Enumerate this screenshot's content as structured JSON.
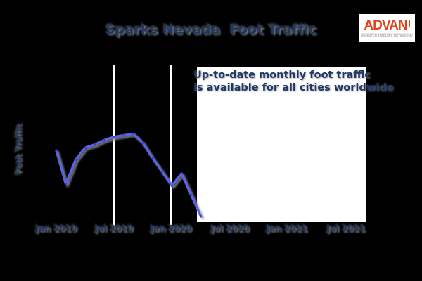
{
  "page": {
    "background": "#000000"
  },
  "header": {
    "title": "Sparks Nevada  Foot Traffic",
    "logo": {
      "name": "ADVAN",
      "tagline": "Research through Technology"
    }
  },
  "chart_data": {
    "type": "line",
    "title": "Sparks Nevada  Foot Traffic",
    "ylabel": "Foot Traffic",
    "xlabel": "",
    "x_tick_labels": [
      "Jan 2019",
      "Jul 2019",
      "Jan 2020",
      "Jul 2020",
      "Jan 2021",
      "Jul 2021"
    ],
    "y_tick_labels": [],
    "value_scale": "relative index 0-100 (y axis shows no numeric labels)",
    "x": [
      "Jan 2019",
      "Feb 2019",
      "Mar 2019",
      "Apr 2019",
      "May 2019",
      "Jun 2019",
      "Jul 2019",
      "Aug 2019",
      "Sep 2019",
      "Oct 2019",
      "Nov 2019",
      "Dec 2019",
      "Jan 2020",
      "Feb 2020",
      "Mar 2020",
      "Apr 2020"
    ],
    "values": [
      45,
      23,
      39,
      47,
      49,
      52,
      54,
      55,
      56,
      50,
      40,
      31,
      22,
      30,
      16,
      2
    ],
    "grid": "vertical white gridlines at Jul 2019 and Jan 2020 only; data after Apr 2020 hidden by overlay",
    "legend": "none",
    "annotation": {
      "line1": "Up-to-date monthly foot traffic",
      "line2": "is available for all cities worldwide"
    }
  },
  "colors": {
    "background": "#000000",
    "line": "#5a64e8",
    "marker": "#3c41d8",
    "shadow": "#8a8a8a",
    "navy_text": "#1f3864",
    "gridline": "#ffffff",
    "annotation_box": "#ffffff",
    "logo_red": "#e2451e",
    "logo_tagline_gray": "#8a8a8a"
  }
}
